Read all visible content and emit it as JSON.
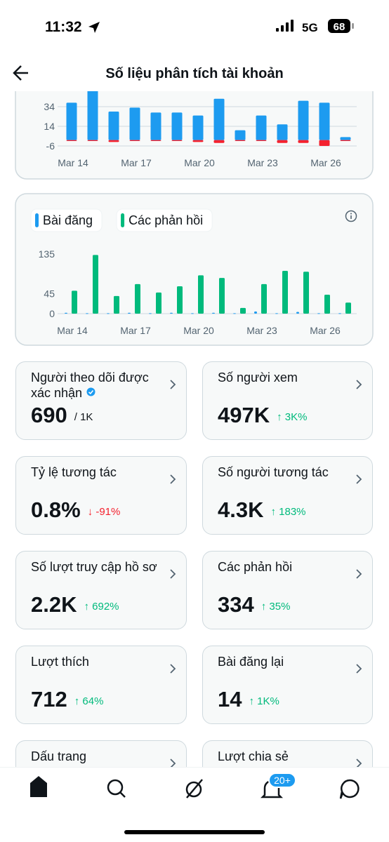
{
  "status_bar": {
    "time": "11:32",
    "network": "5G",
    "battery": "68"
  },
  "header": {
    "title": "Số liệu phân tích tài khoản"
  },
  "chart_data": [
    {
      "type": "bar",
      "stacked": true,
      "categories": [
        "Mar 14",
        null,
        null,
        "Mar 17",
        null,
        null,
        "Mar 20",
        null,
        null,
        "Mar 23",
        null,
        null,
        "Mar 26",
        null
      ],
      "series": [
        {
          "color": "#1d9bf0",
          "values": [
            38,
            52,
            29,
            33,
            28,
            28,
            25,
            42,
            10,
            25,
            16,
            40,
            38,
            3
          ]
        },
        {
          "color": "#f4212e",
          "values": [
            -1,
            -1,
            -2,
            -1,
            -1,
            -1,
            -2,
            -3,
            -1,
            -1,
            -3,
            -3,
            -6,
            -1
          ]
        }
      ],
      "ylim": [
        -8,
        48
      ],
      "yticks": [
        -6,
        14,
        34
      ],
      "grid": true
    },
    {
      "type": "bar",
      "stacked": false,
      "legend": "top-left",
      "categories": [
        "Mar 14",
        null,
        null,
        "Mar 17",
        null,
        null,
        "Mar 20",
        null,
        null,
        "Mar 23",
        null,
        null,
        "Mar 26",
        null
      ],
      "series": [
        {
          "name": "Bài đăng",
          "color": "#1d9bf0",
          "values": [
            2,
            1,
            1,
            2,
            1,
            2,
            1,
            2,
            1,
            5,
            1,
            4,
            1,
            1
          ]
        },
        {
          "name": "Các phản hồi",
          "color": "#00ba7c",
          "values": [
            52,
            133,
            40,
            67,
            48,
            62,
            87,
            81,
            13,
            67,
            97,
            95,
            43,
            25
          ]
        }
      ],
      "ylim": [
        0,
        140
      ],
      "yticks": [
        0,
        45,
        135
      ],
      "grid": false
    }
  ],
  "cards": [
    {
      "label": "Người theo dõi được xác nhận",
      "value": "690",
      "unit": "/ 1K",
      "verified": true
    },
    {
      "label": "Số người xem",
      "value": "497K",
      "change": "↑ 3K%",
      "color": "#00ba7c"
    },
    {
      "label": "Tỷ lệ tương tác",
      "value": "0.8%",
      "change": "↓ -91%",
      "color": "#f4212e"
    },
    {
      "label": "Số người tương tác",
      "value": "4.3K",
      "change": "↑ 183%",
      "color": "#00ba7c"
    },
    {
      "label": "Số lượt truy cập hồ sơ",
      "value": "2.2K",
      "change": "↑ 692%",
      "color": "#00ba7c"
    },
    {
      "label": "Các phản hồi",
      "value": "334",
      "change": "↑ 35%",
      "color": "#00ba7c"
    },
    {
      "label": "Lượt thích",
      "value": "712",
      "change": "↑ 64%",
      "color": "#00ba7c"
    },
    {
      "label": "Bài đăng lại",
      "value": "14",
      "change": "↑ 1K%",
      "color": "#00ba7c"
    },
    {
      "label": "Dấu trang"
    },
    {
      "label": "Lượt chia sẻ"
    }
  ],
  "nav": {
    "badge": "20+"
  }
}
